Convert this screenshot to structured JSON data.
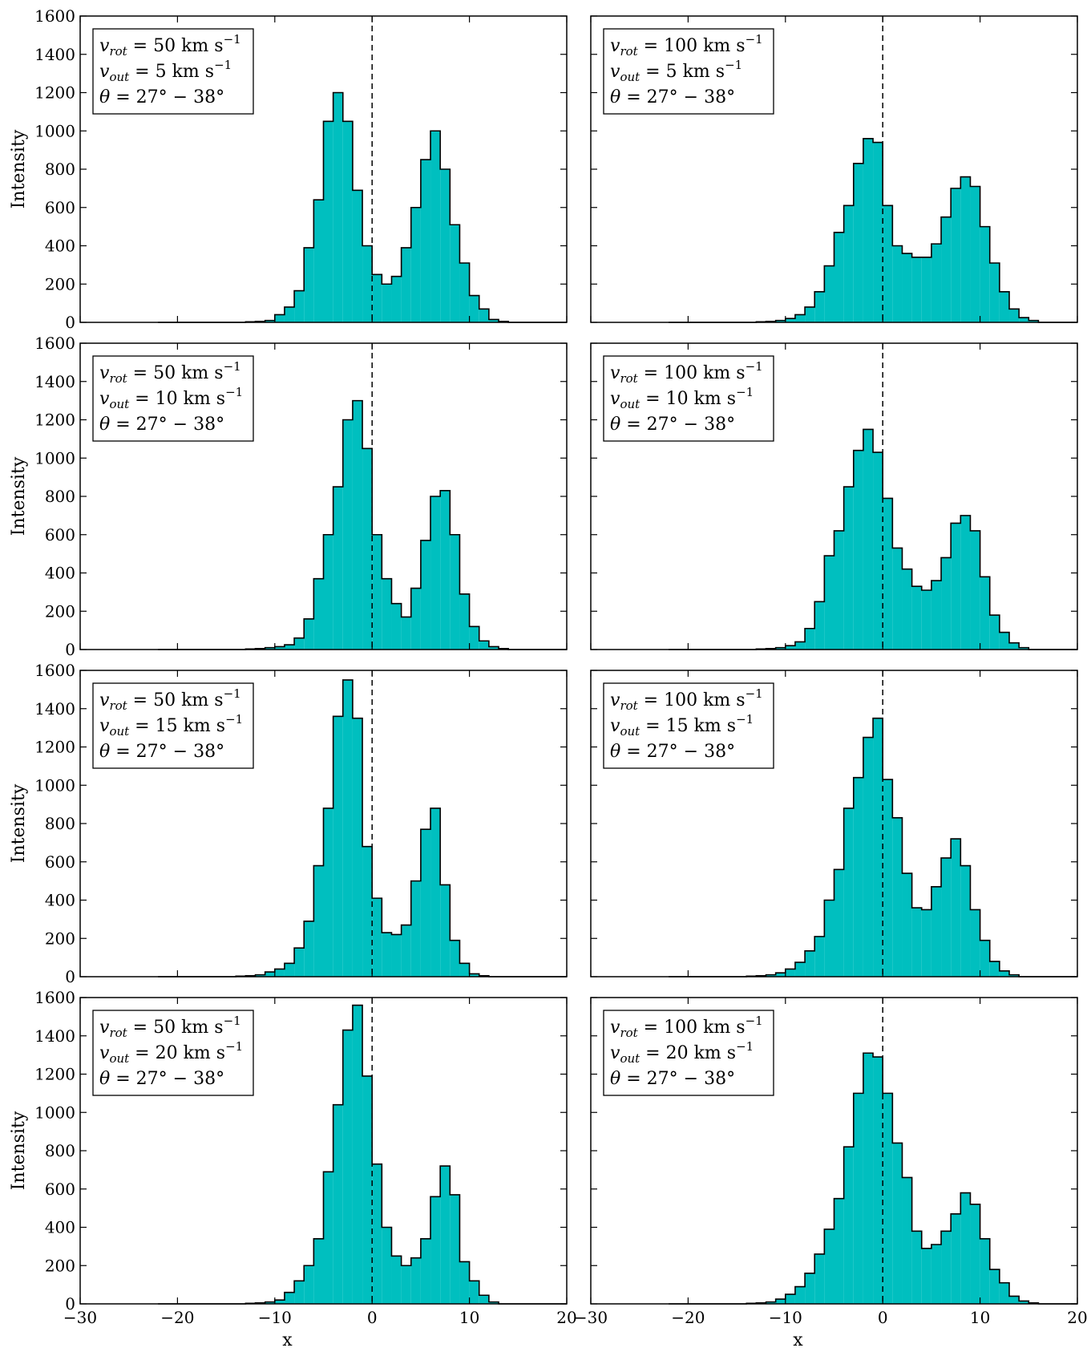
{
  "figure": {
    "fill_color": "#00bfbf",
    "edge_color": "#000000",
    "background": "#ffffff"
  },
  "chart_data": [
    {
      "type": "bar",
      "x_left": [
        -22,
        -21,
        -20,
        -19,
        -18,
        -17,
        -16,
        -15,
        -14,
        -13,
        -12,
        -11,
        -10,
        -9,
        -8,
        -7,
        -6,
        -5,
        -4,
        -3,
        -2,
        -1,
        0,
        1,
        2,
        3,
        4,
        5,
        6,
        7,
        8,
        9,
        10,
        11,
        12,
        13,
        14,
        15,
        16,
        17,
        18,
        19
      ],
      "values": [
        0,
        0,
        0,
        0,
        0,
        0,
        0,
        0,
        0,
        3,
        5,
        10,
        40,
        80,
        165,
        390,
        640,
        1050,
        1200,
        1050,
        690,
        400,
        250,
        200,
        240,
        390,
        600,
        850,
        1000,
        800,
        510,
        310,
        140,
        70,
        15,
        5,
        0,
        0,
        0,
        0,
        0,
        0
      ],
      "xlabel": "",
      "ylabel": "Intensity",
      "xlim": [
        -30,
        20
      ],
      "ylim": [
        0,
        1600
      ],
      "xticks": [
        "−30",
        "−20",
        "−10",
        "0",
        "10",
        "20"
      ],
      "yticks": [
        "0",
        "200",
        "400",
        "600",
        "800",
        "1000",
        "1200",
        "1400",
        "1600"
      ],
      "legend": [
        {
          "sym": "v",
          "sub": "rot",
          "val": "50 km s",
          "exp": "−1"
        },
        {
          "sym": "v",
          "sub": "out",
          "val": "5 km s",
          "exp": "−1"
        },
        {
          "sym": "θ",
          "val": "27° − 38°"
        }
      ]
    },
    {
      "type": "bar",
      "x_left": [
        -22,
        -21,
        -20,
        -19,
        -18,
        -17,
        -16,
        -15,
        -14,
        -13,
        -12,
        -11,
        -10,
        -9,
        -8,
        -7,
        -6,
        -5,
        -4,
        -3,
        -2,
        -1,
        0,
        1,
        2,
        3,
        4,
        5,
        6,
        7,
        8,
        9,
        10,
        11,
        12,
        13,
        14,
        15,
        16,
        17,
        18,
        19
      ],
      "values": [
        0,
        0,
        0,
        0,
        0,
        0,
        0,
        0,
        0,
        3,
        5,
        10,
        20,
        40,
        80,
        160,
        295,
        470,
        610,
        830,
        960,
        940,
        610,
        400,
        360,
        340,
        340,
        410,
        550,
        700,
        760,
        710,
        500,
        310,
        160,
        70,
        25,
        10,
        0,
        0,
        0,
        0
      ],
      "xlabel": "",
      "ylabel": "",
      "xlim": [
        -30,
        20
      ],
      "ylim": [
        0,
        1600
      ],
      "xticks": [
        "−30",
        "−20",
        "−10",
        "0",
        "10",
        "20"
      ],
      "yticks": [
        "0",
        "200",
        "400",
        "600",
        "800",
        "1000",
        "1200",
        "1400",
        "1600"
      ],
      "legend": [
        {
          "sym": "v",
          "sub": "rot",
          "val": "100 km s",
          "exp": "−1"
        },
        {
          "sym": "v",
          "sub": "out",
          "val": "5 km s",
          "exp": "−1"
        },
        {
          "sym": "θ",
          "val": "27° − 38°"
        }
      ]
    },
    {
      "type": "bar",
      "x_left": [
        -22,
        -21,
        -20,
        -19,
        -18,
        -17,
        -16,
        -15,
        -14,
        -13,
        -12,
        -11,
        -10,
        -9,
        -8,
        -7,
        -6,
        -5,
        -4,
        -3,
        -2,
        -1,
        0,
        1,
        2,
        3,
        4,
        5,
        6,
        7,
        8,
        9,
        10,
        11,
        12,
        13,
        14,
        15,
        16,
        17,
        18,
        19
      ],
      "values": [
        0,
        0,
        0,
        0,
        0,
        0,
        0,
        0,
        0,
        3,
        5,
        10,
        15,
        25,
        60,
        160,
        370,
        600,
        850,
        1200,
        1300,
        1050,
        600,
        370,
        240,
        170,
        320,
        570,
        800,
        830,
        600,
        290,
        120,
        45,
        15,
        5,
        0,
        0,
        0,
        0,
        0,
        0
      ],
      "xlabel": "",
      "ylabel": "Intensity",
      "xlim": [
        -30,
        20
      ],
      "ylim": [
        0,
        1600
      ],
      "xticks": [
        "−30",
        "−20",
        "−10",
        "0",
        "10",
        "20"
      ],
      "yticks": [
        "0",
        "200",
        "400",
        "600",
        "800",
        "1000",
        "1200",
        "1400",
        "1600"
      ],
      "legend": [
        {
          "sym": "v",
          "sub": "rot",
          "val": "50 km s",
          "exp": "−1"
        },
        {
          "sym": "v",
          "sub": "out",
          "val": "10 km s",
          "exp": "−1"
        },
        {
          "sym": "θ",
          "val": "27° − 38°"
        }
      ]
    },
    {
      "type": "bar",
      "x_left": [
        -22,
        -21,
        -20,
        -19,
        -18,
        -17,
        -16,
        -15,
        -14,
        -13,
        -12,
        -11,
        -10,
        -9,
        -8,
        -7,
        -6,
        -5,
        -4,
        -3,
        -2,
        -1,
        0,
        1,
        2,
        3,
        4,
        5,
        6,
        7,
        8,
        9,
        10,
        11,
        12,
        13,
        14,
        15,
        16,
        17,
        18,
        19
      ],
      "values": [
        0,
        0,
        0,
        0,
        0,
        0,
        0,
        0,
        0,
        3,
        5,
        10,
        20,
        40,
        110,
        250,
        490,
        620,
        850,
        1040,
        1150,
        1030,
        790,
        530,
        420,
        330,
        310,
        360,
        480,
        660,
        700,
        620,
        380,
        180,
        90,
        35,
        10,
        0,
        0,
        0,
        0,
        0
      ],
      "xlabel": "",
      "ylabel": "",
      "xlim": [
        -30,
        20
      ],
      "ylim": [
        0,
        1600
      ],
      "xticks": [
        "−30",
        "−20",
        "−10",
        "0",
        "10",
        "20"
      ],
      "yticks": [
        "0",
        "200",
        "400",
        "600",
        "800",
        "1000",
        "1200",
        "1400",
        "1600"
      ],
      "legend": [
        {
          "sym": "v",
          "sub": "rot",
          "val": "100 km s",
          "exp": "−1"
        },
        {
          "sym": "v",
          "sub": "out",
          "val": "10 km s",
          "exp": "−1"
        },
        {
          "sym": "θ",
          "val": "27° − 38°"
        }
      ]
    },
    {
      "type": "bar",
      "x_left": [
        -22,
        -21,
        -20,
        -19,
        -18,
        -17,
        -16,
        -15,
        -14,
        -13,
        -12,
        -11,
        -10,
        -9,
        -8,
        -7,
        -6,
        -5,
        -4,
        -3,
        -2,
        -1,
        0,
        1,
        2,
        3,
        4,
        5,
        6,
        7,
        8,
        9,
        10,
        11,
        12,
        13,
        14,
        15,
        16,
        17,
        18,
        19
      ],
      "values": [
        0,
        0,
        0,
        0,
        0,
        0,
        0,
        0,
        3,
        5,
        10,
        25,
        40,
        70,
        150,
        290,
        580,
        880,
        1360,
        1550,
        1350,
        680,
        410,
        230,
        220,
        270,
        500,
        770,
        880,
        480,
        190,
        70,
        15,
        5,
        0,
        0,
        0,
        0,
        0,
        0,
        0,
        0
      ],
      "xlabel": "",
      "ylabel": "Intensity",
      "xlim": [
        -30,
        20
      ],
      "ylim": [
        0,
        1600
      ],
      "xticks": [
        "−30",
        "−20",
        "−10",
        "0",
        "10",
        "20"
      ],
      "yticks": [
        "0",
        "200",
        "400",
        "600",
        "800",
        "1000",
        "1200",
        "1400",
        "1600"
      ],
      "legend": [
        {
          "sym": "v",
          "sub": "rot",
          "val": "50 km s",
          "exp": "−1"
        },
        {
          "sym": "v",
          "sub": "out",
          "val": "15 km s",
          "exp": "−1"
        },
        {
          "sym": "θ",
          "val": "27° − 38°"
        }
      ]
    },
    {
      "type": "bar",
      "x_left": [
        -22,
        -21,
        -20,
        -19,
        -18,
        -17,
        -16,
        -15,
        -14,
        -13,
        -12,
        -11,
        -10,
        -9,
        -8,
        -7,
        -6,
        -5,
        -4,
        -3,
        -2,
        -1,
        0,
        1,
        2,
        3,
        4,
        5,
        6,
        7,
        8,
        9,
        10,
        11,
        12,
        13,
        14,
        15,
        16,
        17,
        18,
        19
      ],
      "values": [
        0,
        0,
        0,
        0,
        0,
        0,
        0,
        0,
        3,
        5,
        10,
        20,
        40,
        75,
        135,
        210,
        400,
        560,
        880,
        1040,
        1250,
        1350,
        1030,
        830,
        540,
        360,
        350,
        470,
        620,
        720,
        580,
        350,
        190,
        80,
        30,
        10,
        0,
        0,
        0,
        0,
        0,
        0
      ],
      "xlabel": "",
      "ylabel": "",
      "xlim": [
        -30,
        20
      ],
      "ylim": [
        0,
        1600
      ],
      "xticks": [
        "−30",
        "−20",
        "−10",
        "0",
        "10",
        "20"
      ],
      "yticks": [
        "0",
        "200",
        "400",
        "600",
        "800",
        "1000",
        "1200",
        "1400",
        "1600"
      ],
      "legend": [
        {
          "sym": "v",
          "sub": "rot",
          "val": "100 km s",
          "exp": "−1"
        },
        {
          "sym": "v",
          "sub": "out",
          "val": "15 km s",
          "exp": "−1"
        },
        {
          "sym": "θ",
          "val": "27° − 38°"
        }
      ]
    },
    {
      "type": "bar",
      "x_left": [
        -22,
        -21,
        -20,
        -19,
        -18,
        -17,
        -16,
        -15,
        -14,
        -13,
        -12,
        -11,
        -10,
        -9,
        -8,
        -7,
        -6,
        -5,
        -4,
        -3,
        -2,
        -1,
        0,
        1,
        2,
        3,
        4,
        5,
        6,
        7,
        8,
        9,
        10,
        11,
        12,
        13,
        14,
        15,
        16,
        17,
        18,
        19
      ],
      "values": [
        0,
        0,
        0,
        0,
        0,
        0,
        0,
        0,
        0,
        3,
        5,
        10,
        20,
        60,
        120,
        200,
        340,
        690,
        1040,
        1430,
        1560,
        1190,
        730,
        400,
        250,
        200,
        240,
        340,
        560,
        720,
        570,
        220,
        120,
        45,
        10,
        0,
        0,
        0,
        0,
        0,
        0,
        0
      ],
      "xlabel": "x",
      "ylabel": "Intensity",
      "xlim": [
        -30,
        20
      ],
      "ylim": [
        0,
        1600
      ],
      "xticks": [
        "−30",
        "−20",
        "−10",
        "0",
        "10",
        "20"
      ],
      "yticks": [
        "0",
        "200",
        "400",
        "600",
        "800",
        "1000",
        "1200",
        "1400",
        "1600"
      ],
      "legend": [
        {
          "sym": "v",
          "sub": "rot",
          "val": "50 km s",
          "exp": "−1"
        },
        {
          "sym": "v",
          "sub": "out",
          "val": "20 km s",
          "exp": "−1"
        },
        {
          "sym": "θ",
          "val": "27° − 38°"
        }
      ]
    },
    {
      "type": "bar",
      "x_left": [
        -22,
        -21,
        -20,
        -19,
        -18,
        -17,
        -16,
        -15,
        -14,
        -13,
        -12,
        -11,
        -10,
        -9,
        -8,
        -7,
        -6,
        -5,
        -4,
        -3,
        -2,
        -1,
        0,
        1,
        2,
        3,
        4,
        5,
        6,
        7,
        8,
        9,
        10,
        11,
        12,
        13,
        14,
        15,
        16,
        17,
        18,
        19
      ],
      "values": [
        0,
        0,
        0,
        0,
        0,
        0,
        0,
        0,
        3,
        5,
        10,
        25,
        50,
        90,
        160,
        260,
        390,
        550,
        820,
        1100,
        1310,
        1290,
        1100,
        840,
        660,
        380,
        290,
        310,
        380,
        470,
        580,
        520,
        340,
        180,
        110,
        40,
        15,
        5,
        0,
        0,
        0,
        0
      ],
      "xlabel": "x",
      "ylabel": "",
      "xlim": [
        -30,
        20
      ],
      "ylim": [
        0,
        1600
      ],
      "xticks": [
        "−30",
        "−20",
        "−10",
        "0",
        "10",
        "20"
      ],
      "yticks": [
        "0",
        "200",
        "400",
        "600",
        "800",
        "1000",
        "1200",
        "1400",
        "1600"
      ],
      "legend": [
        {
          "sym": "v",
          "sub": "rot",
          "val": "100 km s",
          "exp": "−1"
        },
        {
          "sym": "v",
          "sub": "out",
          "val": "20 km s",
          "exp": "−1"
        },
        {
          "sym": "θ",
          "val": "27° − 38°"
        }
      ]
    }
  ]
}
